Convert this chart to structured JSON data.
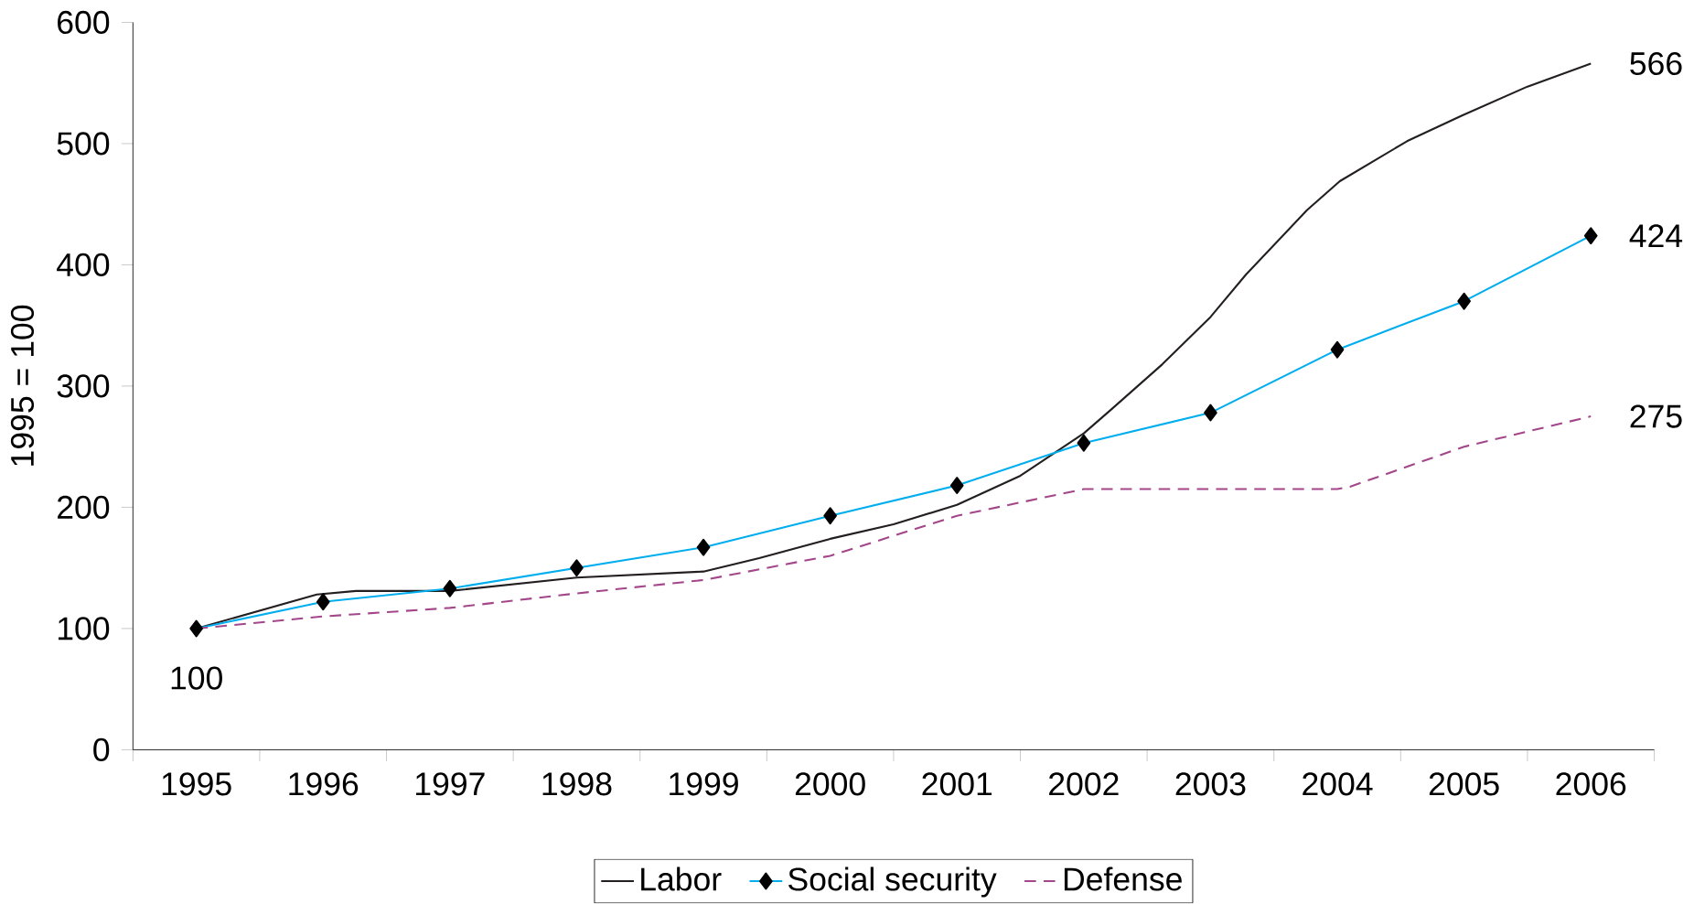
{
  "chart_data": {
    "type": "line",
    "ylabel": "1995 = 100",
    "xlim": [
      1994.5,
      2006.5
    ],
    "xticks": [
      1995,
      1996,
      1997,
      1998,
      1999,
      2000,
      2001,
      2002,
      2003,
      2004,
      2005,
      2006
    ],
    "ylim": [
      0,
      600
    ],
    "yticks": [
      0,
      100,
      200,
      300,
      400,
      500,
      600
    ],
    "grid": false,
    "legend": "bottom",
    "series": [
      {
        "name": "Labor",
        "color": "#231f20",
        "marker": "none",
        "line_style": "solid",
        "x": [
          1995,
          1995.95,
          1996.26,
          1997,
          1998,
          1999,
          1999.44,
          2000,
          2000.5,
          2001,
          2001.5,
          2002,
          2002.22,
          2002.62,
          2003,
          2003.28,
          2003.76,
          2004.02,
          2004.55,
          2004.98,
          2005.5,
          2006
        ],
        "values": [
          100,
          128,
          131,
          131,
          142,
          147,
          158,
          174,
          186,
          202,
          226,
          261,
          281,
          318,
          357,
          392,
          445,
          469,
          502,
          523,
          547,
          566
        ],
        "value_labels": [
          "100",
          null,
          null,
          null,
          null,
          null,
          null,
          null,
          null,
          null,
          null,
          null,
          null,
          null,
          null,
          null,
          null,
          null,
          null,
          null,
          null,
          "566"
        ]
      },
      {
        "name": "Social security",
        "color": "#00aeef",
        "marker": "diamond",
        "line_style": "solid",
        "x": [
          1995,
          1996,
          1997,
          1998,
          1999,
          2000,
          2001,
          2002,
          2003,
          2004,
          2005,
          2006
        ],
        "values": [
          100,
          122,
          133,
          150,
          167,
          193,
          218,
          253,
          278,
          330,
          370,
          424
        ],
        "value_labels": [
          null,
          null,
          null,
          null,
          null,
          null,
          null,
          null,
          null,
          null,
          null,
          "424"
        ]
      },
      {
        "name": "Defense",
        "color": "#a3478a",
        "marker": "none",
        "line_style": "dashed",
        "x": [
          1995,
          1996,
          1997,
          1998,
          1999,
          2000,
          2001,
          2002,
          2003,
          2004,
          2004.1,
          2005,
          2006
        ],
        "values": [
          100,
          110,
          117,
          129,
          140,
          160,
          193,
          215,
          215,
          215,
          217,
          250,
          275
        ],
        "value_labels": [
          null,
          null,
          null,
          null,
          null,
          null,
          null,
          null,
          null,
          null,
          null,
          null,
          "275"
        ]
      }
    ]
  }
}
